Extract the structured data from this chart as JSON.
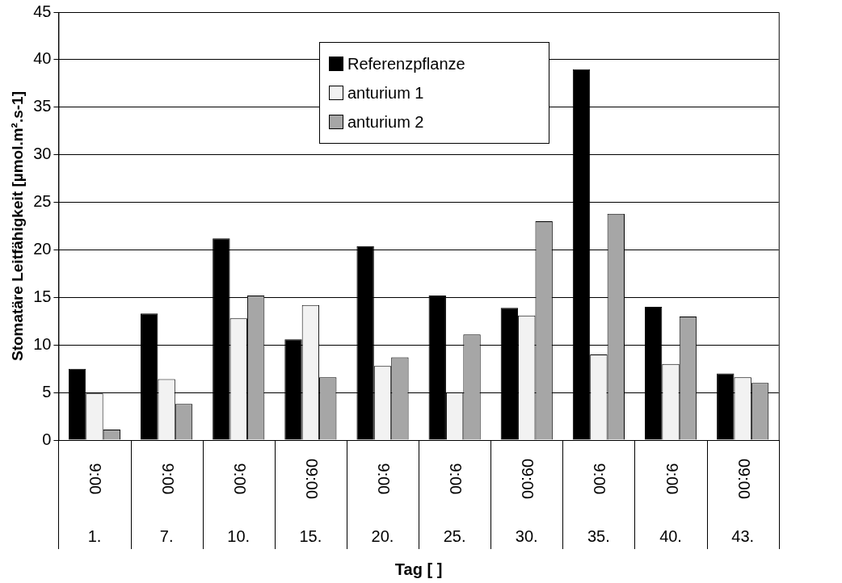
{
  "chart_data": {
    "type": "bar",
    "xlabel": "Tag [ ]",
    "ylabel": "Stomatäre Leitfähigkeit [µmol.m².s-1]",
    "categories": [
      "1.",
      "7.",
      "10.",
      "15.",
      "20.",
      "25.",
      "30.",
      "35.",
      "40.",
      "43."
    ],
    "series": [
      {
        "name": "Referenzpflanze",
        "color": "#000000",
        "values": [
          7.5,
          13.3,
          21.2,
          10.6,
          20.4,
          15.2,
          13.9,
          39,
          14,
          7
        ]
      },
      {
        "name": "anturium 1",
        "color": "#f2f2f2",
        "values": [
          4.9,
          6.4,
          12.8,
          14.2,
          7.8,
          5.0,
          13.1,
          9.0,
          8.0,
          6.6
        ]
      },
      {
        "name": "anturium 2",
        "color": "#a6a6a6",
        "values": [
          1.1,
          3.8,
          15.2,
          6.6,
          8.7,
          11.1,
          23.0,
          23.8,
          13.0,
          6.0
        ]
      }
    ],
    "annotations": [
      "9:00",
      "9:00",
      "9:00",
      "09:00",
      "9:00",
      "9:00",
      "09:00",
      "9:00",
      "9:00",
      "09:00"
    ],
    "ylim": [
      0,
      45
    ],
    "yticks": [
      0,
      5,
      10,
      15,
      20,
      25,
      30,
      35,
      40,
      45
    ],
    "grid": "y",
    "legend": "top"
  }
}
